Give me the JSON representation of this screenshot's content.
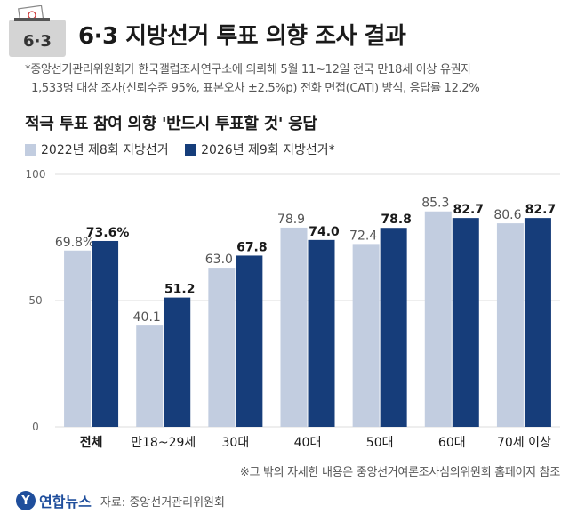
{
  "header": {
    "badge": "6·3",
    "title": "6·3 지방선거 투표 의향 조사 결과",
    "note_line1": "*중앙선거관리위원회가 한국갤럽조사연구소에 의뢰해 5월 11~12일 전국 만18세 이상 유권자",
    "note_line2": "1,533명 대상 조사(신뢰수준 95%, 표본오차 ±2.5%p) 전화 면접(CATI) 방식, 응답률 12.2%"
  },
  "colors": {
    "series1": "#c2cde0",
    "series2": "#163d7a",
    "grid": "#dddddd",
    "accent": "#1f4e9c"
  },
  "chart_data": {
    "type": "bar",
    "title": "적극 투표 참여 의향 '반드시 투표할 것' 응답",
    "categories": [
      "전체",
      "만18~29세",
      "30대",
      "40대",
      "50대",
      "60대",
      "70세 이상"
    ],
    "series": [
      {
        "name": "2022년 제8회 지방선거",
        "values": [
          69.8,
          40.1,
          63.0,
          78.9,
          72.4,
          85.3,
          80.6
        ],
        "labels": [
          "69.8%",
          "40.1",
          "63.0",
          "78.9",
          "72.4",
          "85.3",
          "80.6"
        ]
      },
      {
        "name": "2026년 제9회 지방선거*",
        "values": [
          73.6,
          51.2,
          67.8,
          74.0,
          78.8,
          82.7,
          82.7
        ],
        "labels": [
          "73.6%",
          "51.2",
          "67.8",
          "74.0",
          "78.8",
          "82.7",
          "82.7"
        ]
      }
    ],
    "ylim": [
      0,
      100
    ],
    "yticks": [
      0,
      50,
      100
    ],
    "grid": true,
    "legend": "top-left"
  },
  "footer": {
    "footnote": "※그 밖의 자세한 내용은 중앙선거여론조사심의위원회 홈페이지 참조",
    "logo_mark": "Y",
    "logo_text": "연합뉴스",
    "source": "자료: 중앙선거관리위원회"
  }
}
